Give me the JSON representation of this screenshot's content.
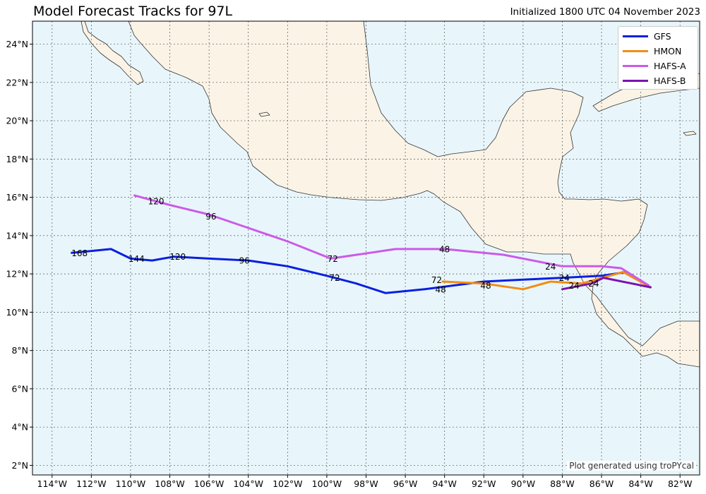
{
  "header": {
    "title": "Model Forecast Tracks for 97L",
    "initialized": "Initialized 1800 UTC 04 November 2023"
  },
  "credit": "Plot generated using troPYcal",
  "colors": {
    "ocean": "#e8f6fb",
    "land": "#fbf3e6",
    "coast": "#333333",
    "grid": "#555555"
  },
  "chart_data": {
    "type": "line",
    "xlim": [
      -115,
      -81
    ],
    "ylim": [
      1.5,
      25.2
    ],
    "grid": true,
    "legend_position": "top-right",
    "x_ticks": [
      "114°W",
      "112°W",
      "110°W",
      "108°W",
      "106°W",
      "104°W",
      "102°W",
      "100°W",
      "98°W",
      "96°W",
      "94°W",
      "92°W",
      "90°W",
      "88°W",
      "86°W",
      "84°W",
      "82°W"
    ],
    "y_ticks": [
      "2°N",
      "4°N",
      "6°N",
      "8°N",
      "10°N",
      "12°N",
      "14°N",
      "16°N",
      "18°N",
      "20°N",
      "22°N",
      "24°N"
    ],
    "series": [
      {
        "name": "GFS",
        "color": "#0b1fe0",
        "lon": [
          -84.7,
          -86.0,
          -88.0,
          -90.0,
          -92.0,
          -93.5,
          -95.0,
          -97.0,
          -98.5,
          -100.0,
          -102.0,
          -104.0,
          -106.0,
          -107.8,
          -108.9,
          -110.0,
          -111.0,
          -112.0,
          -113.0
        ],
        "lat": [
          12.1,
          11.9,
          11.8,
          11.7,
          11.6,
          11.4,
          11.2,
          11.0,
          11.5,
          11.9,
          12.4,
          12.7,
          12.8,
          12.9,
          12.7,
          12.8,
          13.3,
          13.2,
          13.1
        ],
        "labels": [
          {
            "text": "24",
            "lon": -87.9,
            "lat": 11.8
          },
          {
            "text": "48",
            "lon": -94.2,
            "lat": 11.2
          },
          {
            "text": "72",
            "lon": -99.6,
            "lat": 11.8
          },
          {
            "text": "96",
            "lon": -104.2,
            "lat": 12.7
          },
          {
            "text": "120",
            "lon": -107.6,
            "lat": 12.9
          },
          {
            "text": "144",
            "lon": -109.7,
            "lat": 12.8
          },
          {
            "text": "168",
            "lon": -112.6,
            "lat": 13.1
          }
        ]
      },
      {
        "name": "HMON",
        "color": "#f28c14",
        "lon": [
          -83.5,
          -84.9,
          -87.0,
          -88.6,
          -90.0,
          -92.0,
          -94.1
        ],
        "lat": [
          11.3,
          12.1,
          11.5,
          11.6,
          11.2,
          11.5,
          11.6
        ],
        "labels": [
          {
            "text": "24",
            "lon": -87.4,
            "lat": 11.4
          },
          {
            "text": "48",
            "lon": -91.9,
            "lat": 11.4
          },
          {
            "text": "72",
            "lon": -94.4,
            "lat": 11.7
          }
        ]
      },
      {
        "name": "HAFS-A",
        "color": "#cc5ae8",
        "lon": [
          -83.6,
          -85.0,
          -86.0,
          -88.0,
          -91.0,
          -94.0,
          -96.5,
          -99.8,
          -102.0,
          -104.0,
          -106.0,
          -108.0,
          -109.8
        ],
        "lat": [
          11.4,
          12.3,
          12.4,
          12.4,
          13.0,
          13.3,
          13.3,
          12.8,
          13.7,
          14.4,
          15.1,
          15.6,
          16.1
        ],
        "labels": [
          {
            "text": "24",
            "lon": -88.6,
            "lat": 12.4
          },
          {
            "text": "48",
            "lon": -94.0,
            "lat": 13.3
          },
          {
            "text": "72",
            "lon": -99.7,
            "lat": 12.8
          },
          {
            "text": "96",
            "lon": -105.9,
            "lat": 15.0
          },
          {
            "text": "120",
            "lon": -108.7,
            "lat": 15.8
          }
        ]
      },
      {
        "name": "HAFS-B",
        "color": "#7b12b0",
        "lon": [
          -83.5,
          -85.9,
          -86.5,
          -88.0
        ],
        "lat": [
          11.3,
          11.8,
          11.5,
          11.2
        ],
        "labels": [
          {
            "text": "24",
            "lon": -86.4,
            "lat": 11.5
          }
        ]
      }
    ]
  }
}
